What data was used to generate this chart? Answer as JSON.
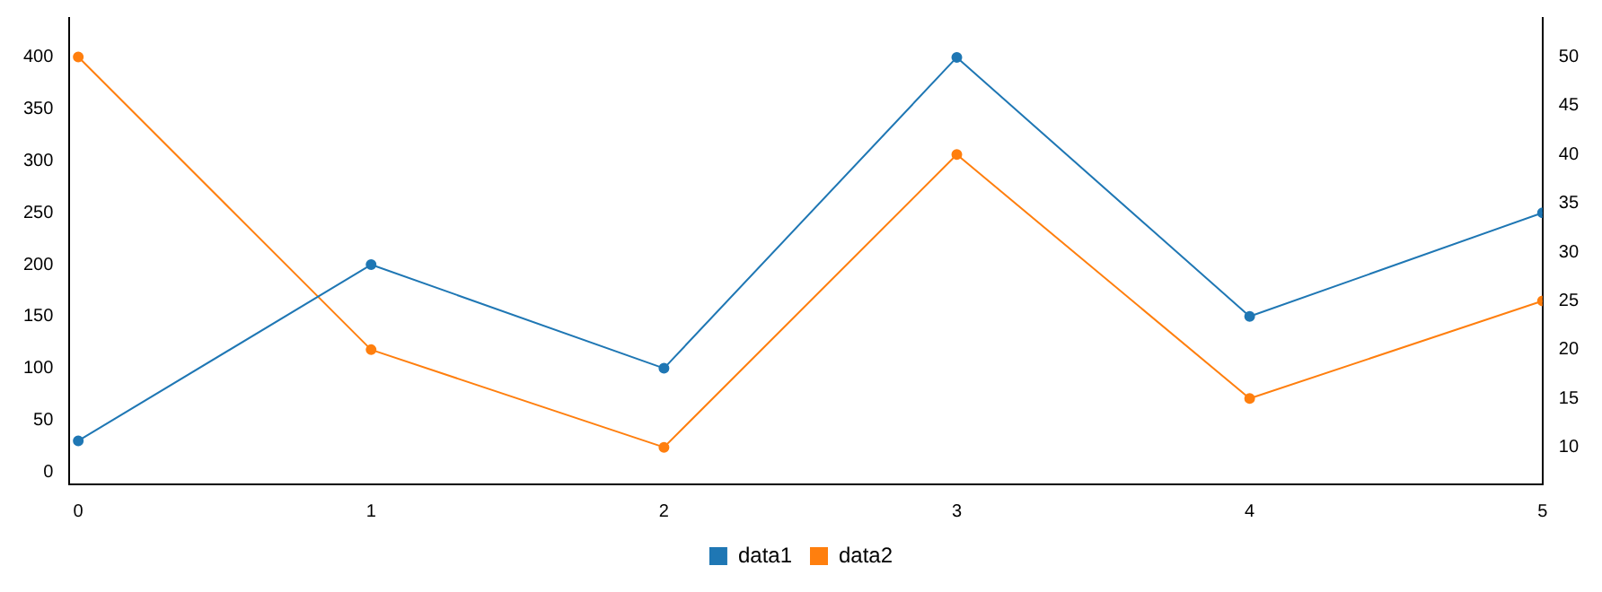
{
  "chart_data": {
    "type": "line",
    "x": [
      0,
      1,
      2,
      3,
      4,
      5
    ],
    "series": [
      {
        "name": "data1",
        "color": "#1f77b4",
        "values": [
          30,
          200,
          100,
          400,
          150,
          250
        ]
      },
      {
        "name": "data2",
        "color": "#ff7f0e",
        "values": [
          50,
          20,
          10,
          40,
          15,
          25
        ],
        "axis": "y2"
      }
    ],
    "xlim": [
      -0.03,
      5
    ],
    "xticks": [
      0,
      1,
      2,
      3,
      4,
      5
    ],
    "ylim": [
      -12,
      438
    ],
    "yticks": [
      0,
      50,
      100,
      150,
      200,
      250,
      300,
      350,
      400
    ],
    "y2lim": [
      6.2,
      54
    ],
    "y2ticks": [
      10,
      15,
      20,
      25,
      30,
      35,
      40,
      45,
      50
    ],
    "grid": false,
    "legend": "bottom",
    "marker": "circle",
    "line_style": "solid"
  }
}
